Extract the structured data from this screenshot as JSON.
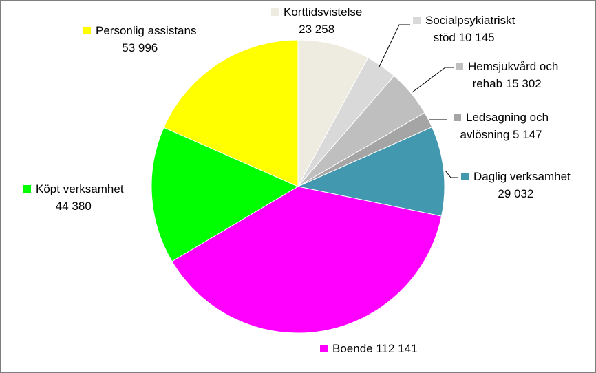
{
  "chart_data": {
    "type": "pie",
    "title": "",
    "slices": [
      {
        "label": "Korttidsvistelse",
        "value": 23258,
        "value_text": "23 258",
        "color": "#EEECE1"
      },
      {
        "label": "Socialpsykiatriskt stöd",
        "value": 10145,
        "value_text": "10 145",
        "color": "#D9D9D9"
      },
      {
        "label": "Hemsjukvård och rehab",
        "value": 15302,
        "value_text": "15 302",
        "color": "#BFBFBF"
      },
      {
        "label": "Ledsagning och avlösning",
        "value": 5147,
        "value_text": "5 147",
        "color": "#A5A5A5"
      },
      {
        "label": "Daglig verksamhet",
        "value": 29032,
        "value_text": "29 032",
        "color": "#4198AF"
      },
      {
        "label": "Boende",
        "value": 112141,
        "value_text": "112 141",
        "color": "#FF00FF"
      },
      {
        "label": "Köpt verksamhet",
        "value": 44380,
        "value_text": "44 380",
        "color": "#00FF00"
      },
      {
        "label": "Personlig assistans",
        "value": 53996,
        "value_text": "53 996",
        "color": "#FFFF00"
      }
    ],
    "legend": "data labels with category name and value next to each slice"
  },
  "labels": {
    "korttid_line1": "Korttidsvistelse",
    "korttid_line2": "23 258",
    "social_line1": "Socialpsykiatriskt",
    "social_line2": "stöd 10 145",
    "hemsjuk_line1": "Hemsjukvård och",
    "hemsjuk_line2": "rehab 15 302",
    "ledsag_line1": "Ledsagning och",
    "ledsag_line2": "avlösning 5 147",
    "daglig_line1": "Daglig verksamhet",
    "daglig_line2": "29 032",
    "boende_line1": "Boende 112 141",
    "kopt_line1": "Köpt verksamhet",
    "kopt_line2": "44 380",
    "personlig_line1": "Personlig assistans",
    "personlig_line2": "53 996"
  }
}
